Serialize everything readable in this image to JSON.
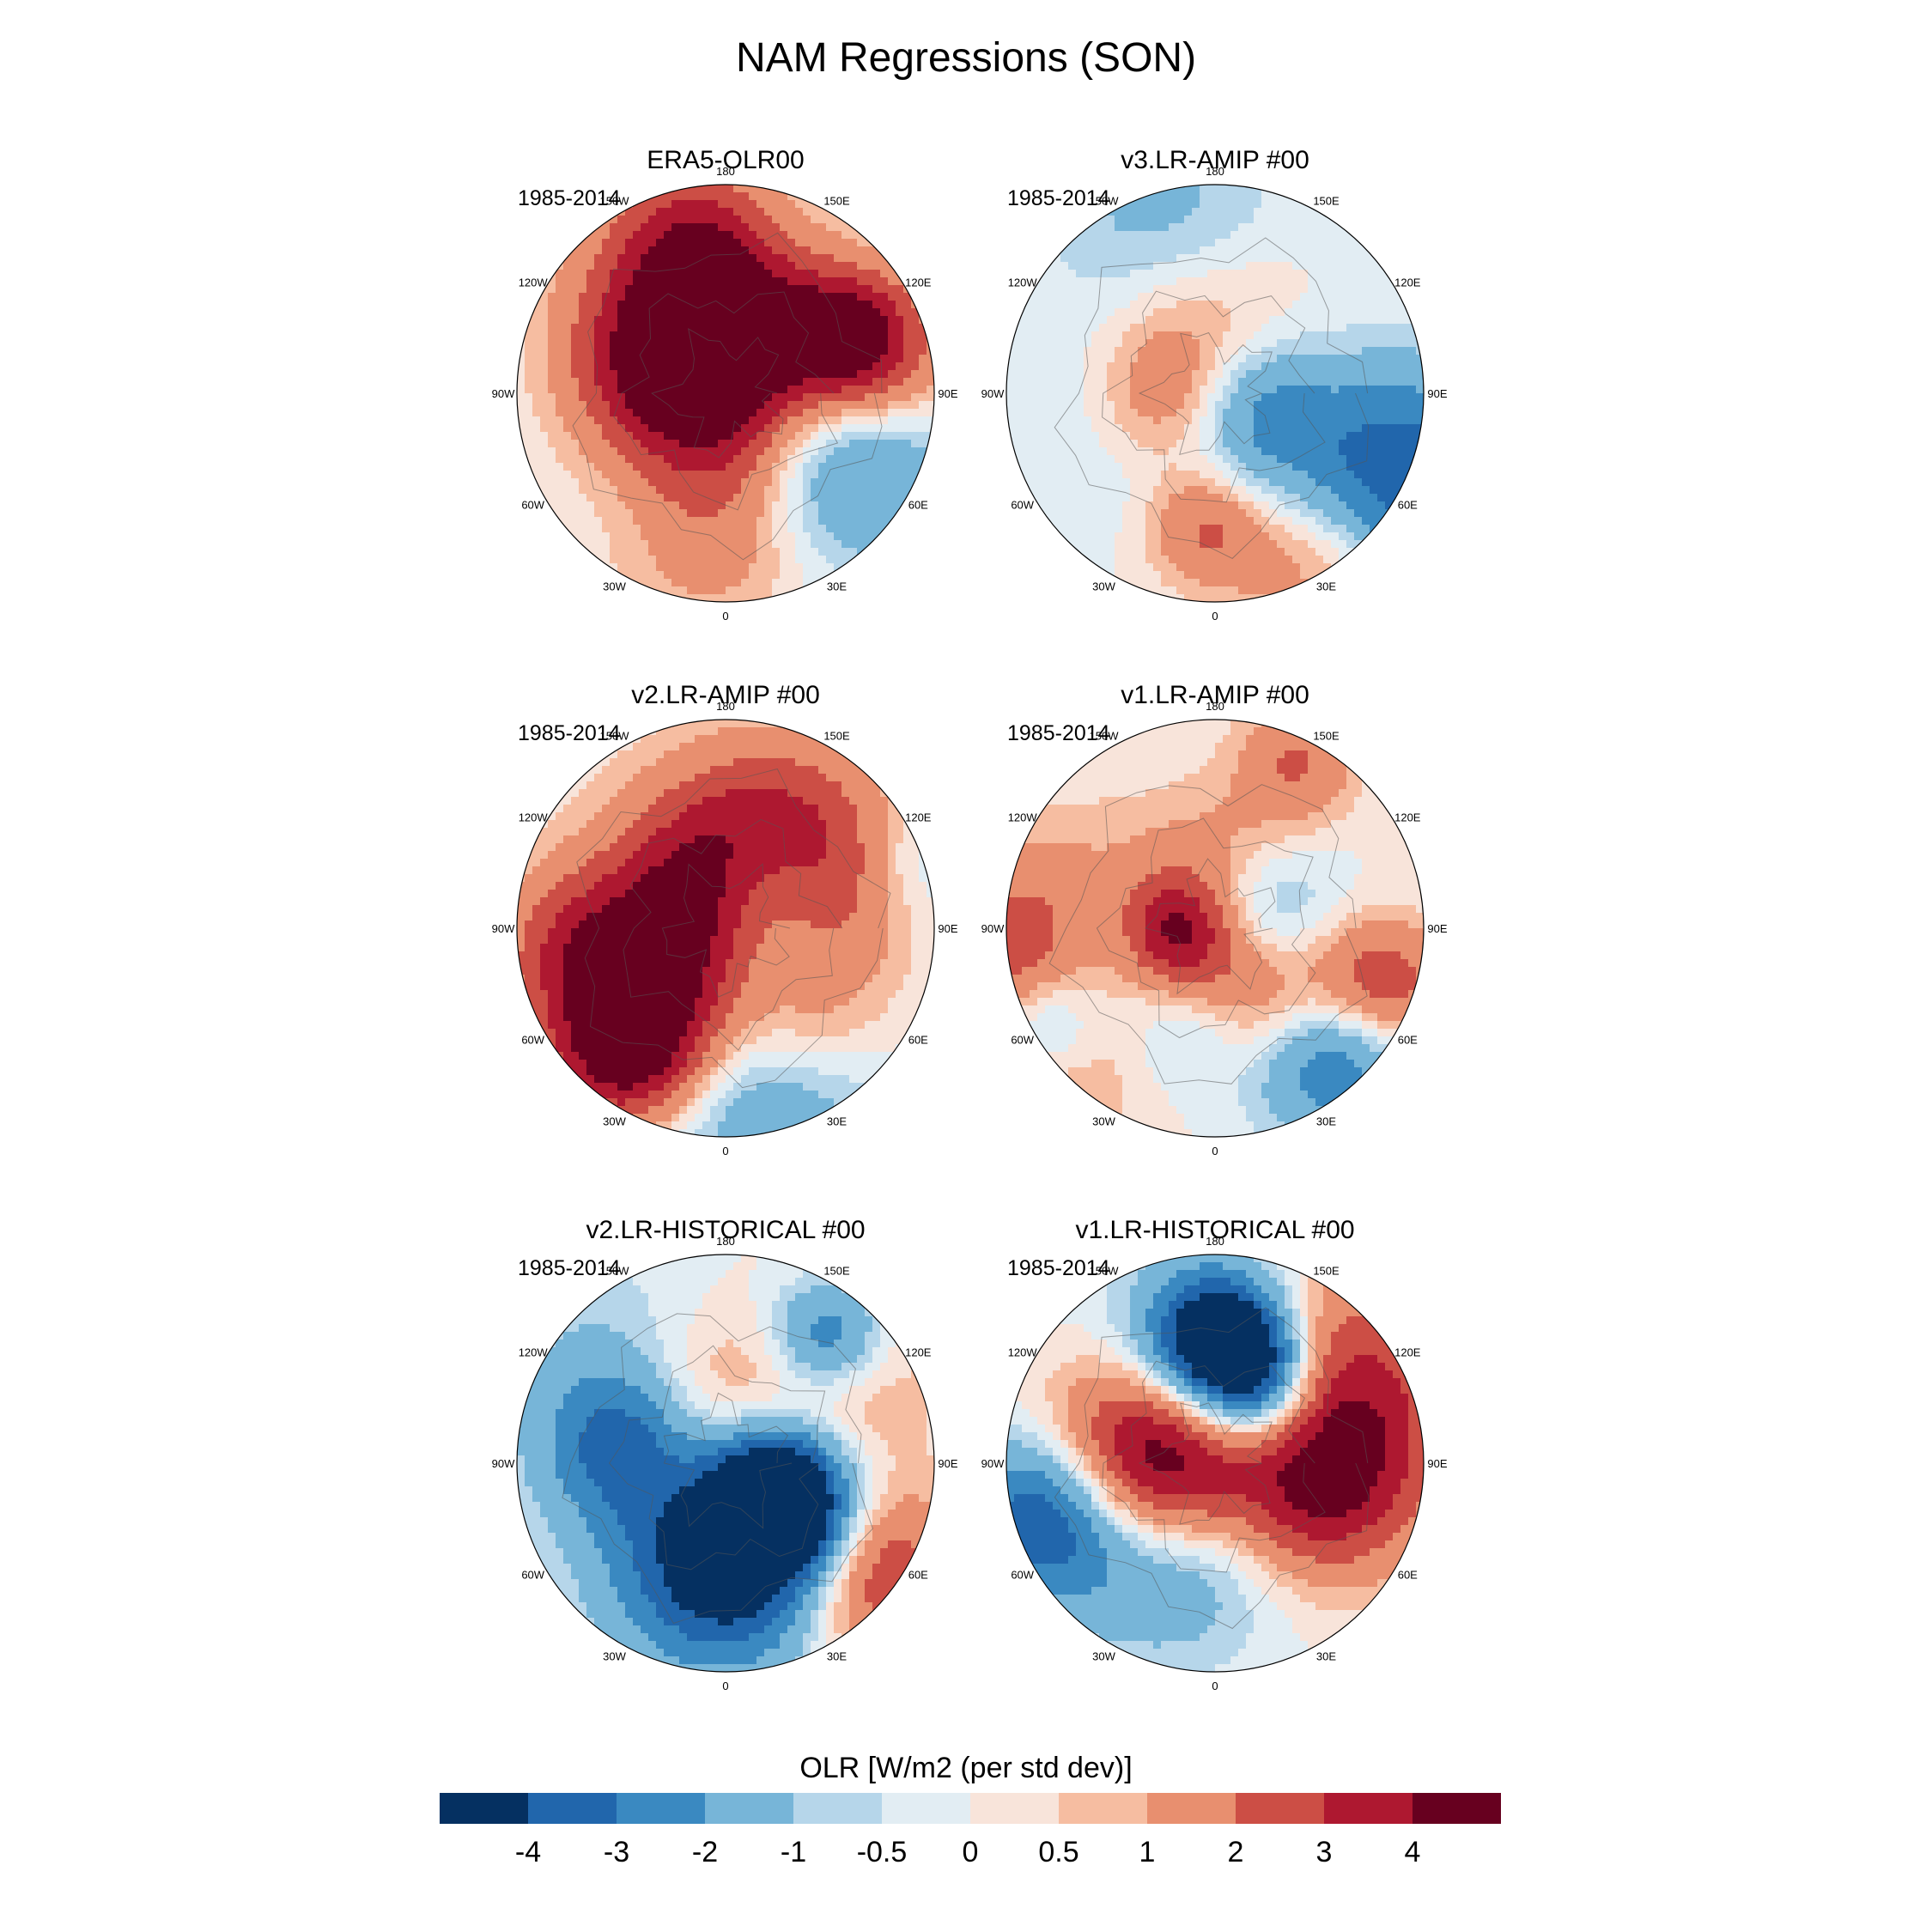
{
  "title": "NAM Regressions (SON)",
  "panels": [
    {
      "title": "ERA5-OLR00",
      "period": "1985-2014",
      "seed": 11
    },
    {
      "title": "v3.LR-AMIP  #00",
      "period": "1985-2014",
      "seed": 23
    },
    {
      "title": "v2.LR-AMIP  #00",
      "period": "1985-2014",
      "seed": 37
    },
    {
      "title": "v1.LR-AMIP  #00",
      "period": "1985-2014",
      "seed": 41
    },
    {
      "title": "v2.LR-HISTORICAL  #00",
      "period": "1985-2014",
      "seed": 53
    },
    {
      "title": "v1.LR-HISTORICAL  #00",
      "period": "1985-2014",
      "seed": 67
    }
  ],
  "longitude_labels": [
    "180",
    "150E",
    "120E",
    "90E",
    "60E",
    "30E",
    "0",
    "30W",
    "60W",
    "90W",
    "120W",
    "150W"
  ],
  "colorbar": {
    "title": "OLR [W/m2 (per std dev)]",
    "labels": [
      "-4",
      "-3",
      "-2",
      "-1",
      "-0.5",
      "0",
      "0.5",
      "1",
      "2",
      "3",
      "4"
    ],
    "colors": [
      "#053061",
      "#2166ac",
      "#3a89c1",
      "#77b5d8",
      "#b6d6ea",
      "#e2edf3",
      "#f8e4da",
      "#f6bda1",
      "#e88f6f",
      "#cc4e45",
      "#ae1830",
      "#67001f"
    ]
  }
}
